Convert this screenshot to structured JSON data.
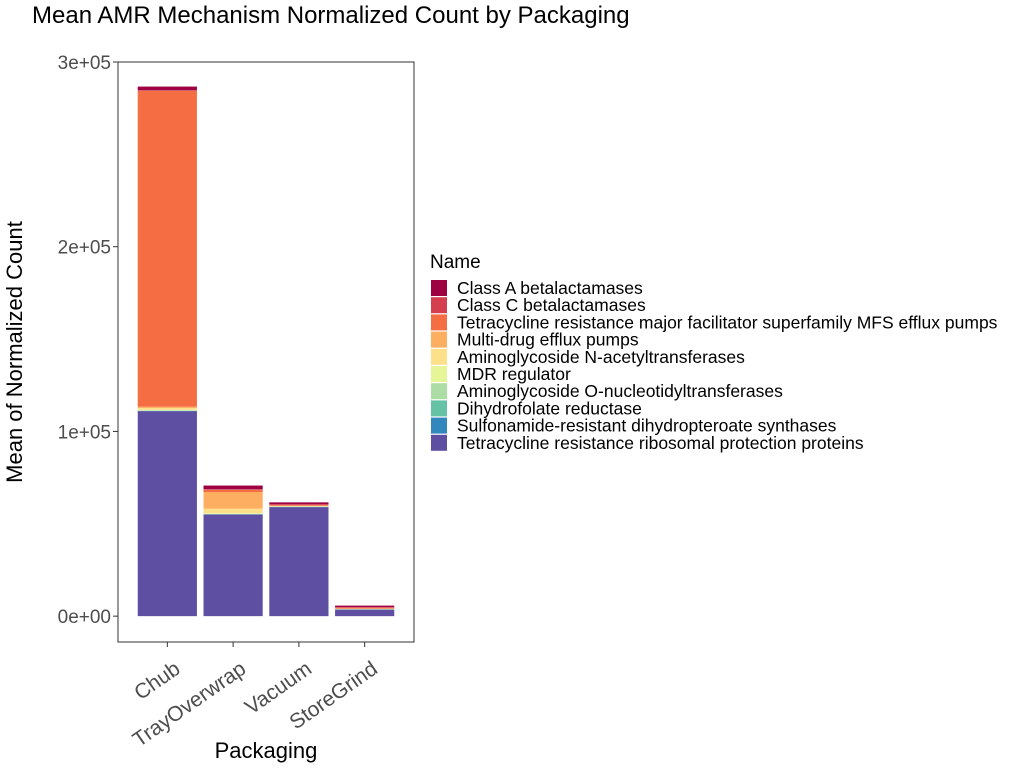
{
  "chart_data": {
    "type": "bar",
    "stacked": true,
    "title": "Mean AMR Mechanism Normalized Count by Packaging",
    "xlabel": "Packaging",
    "ylabel": "Mean of Normalized Count",
    "ylim": [
      -14000,
      300000
    ],
    "yticks": [
      0,
      100000,
      200000,
      300000
    ],
    "ytick_labels": [
      "0e+00",
      "1e+05",
      "2e+05",
      "3e+05"
    ],
    "categories": [
      "Chub",
      "TrayOverwrap",
      "Vacuum",
      "StoreGrind"
    ],
    "legend_title": "Name",
    "legend_position": "right",
    "grid": false,
    "series": [
      {
        "name": "Class A betalactamases",
        "color": "#9E0142",
        "values": [
          2000,
          2000,
          1000,
          800
        ]
      },
      {
        "name": "Class C betalactamases",
        "color": "#D53E4F",
        "values": [
          300,
          300,
          400,
          300
        ]
      },
      {
        "name": "Tetracycline resistance major facilitator superfamily MFS efflux pumps",
        "color": "#F46D43",
        "values": [
          171000,
          1200,
          400,
          500
        ]
      },
      {
        "name": "Multi-drug efflux pumps",
        "color": "#FDAE61",
        "values": [
          700,
          9000,
          200,
          100
        ]
      },
      {
        "name": "Aminoglycoside N-acetyltransferases",
        "color": "#FEE08B",
        "values": [
          1000,
          2500,
          200,
          100
        ]
      },
      {
        "name": "MDR regulator",
        "color": "#E6F598",
        "values": [
          300,
          300,
          100,
          100
        ]
      },
      {
        "name": "Aminoglycoside O-nucleotidyltransferases",
        "color": "#ABDDA4",
        "values": [
          200,
          200,
          100,
          100
        ]
      },
      {
        "name": "Dihydrofolate reductase",
        "color": "#66C2A5",
        "values": [
          100,
          100,
          100,
          100
        ]
      },
      {
        "name": "Sulfonamide-resistant dihydropteroate synthases",
        "color": "#3288BD",
        "values": [
          100,
          100,
          100,
          100
        ]
      },
      {
        "name": "Tetracycline resistance ribosomal protection proteins",
        "color": "#5E4FA2",
        "values": [
          111000,
          55000,
          59000,
          3500
        ]
      }
    ]
  }
}
